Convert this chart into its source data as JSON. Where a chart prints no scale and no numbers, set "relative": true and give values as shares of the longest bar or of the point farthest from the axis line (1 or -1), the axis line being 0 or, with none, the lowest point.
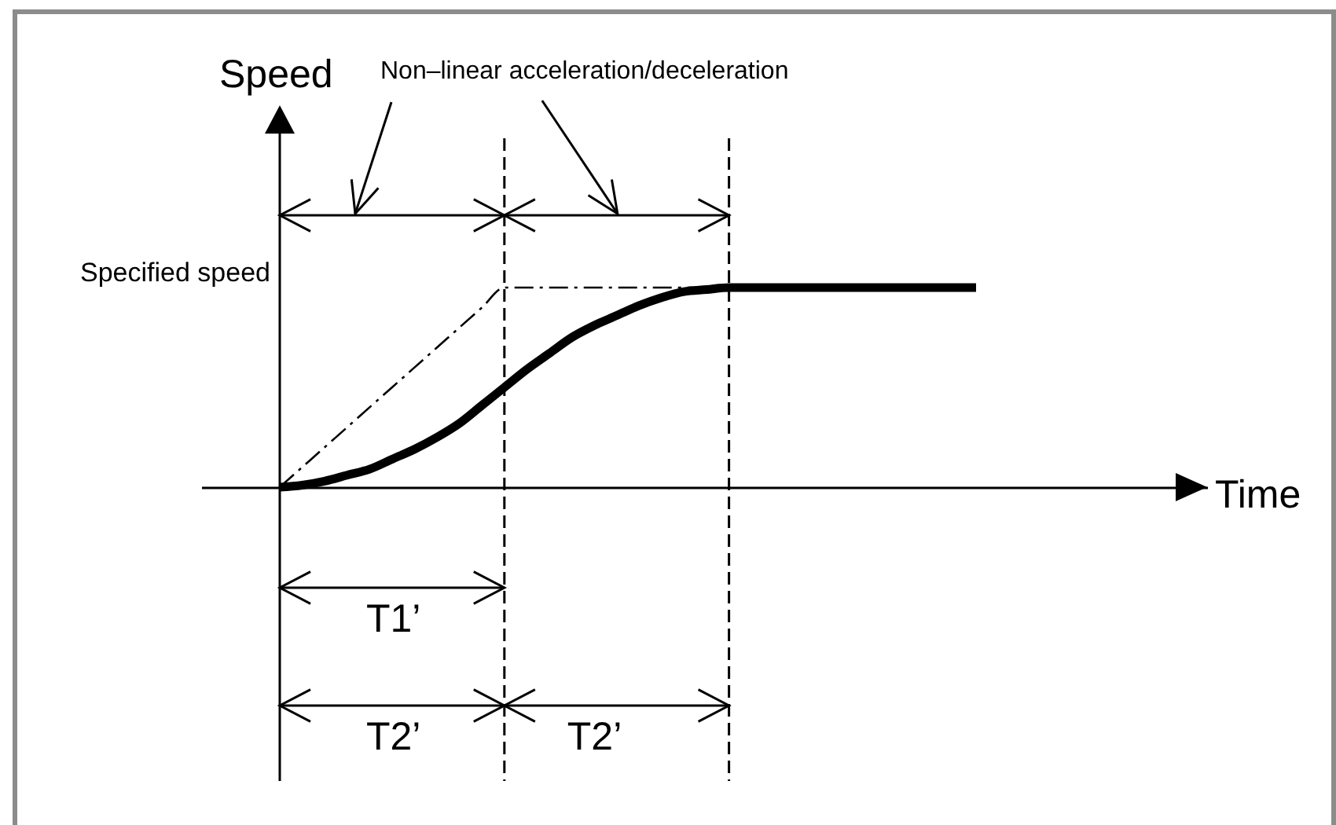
{
  "chart_data": {
    "type": "line",
    "ylabel": "Speed",
    "relative": true,
    "line_style": "solid",
    "categories": [
      null,
      null,
      null,
      null,
      null,
      null,
      null,
      null,
      null,
      null,
      null,
      null,
      null,
      null,
      null,
      null,
      null,
      null,
      null,
      null,
      null,
      null,
      null,
      null,
      null,
      null,
      null,
      null,
      null,
      null,
      null,
      null
    ],
    "series": [
      {
        "color": "#000000",
        "values": [
          0,
          0.01,
          0.03,
          0.06,
          0.09,
          0.14,
          0.19,
          0.25,
          0.32,
          0.41,
          0.5,
          0.59,
          0.67,
          0.75,
          0.81,
          0.86,
          0.91,
          0.95,
          0.98,
          0.99,
          1,
          1,
          1,
          1,
          1,
          1,
          1,
          1,
          1,
          1,
          1,
          1
        ]
      },
      {
        "color": "#000000",
        "line_style": "dashed",
        "values": [
          0,
          0.1,
          0.2,
          0.3,
          0.4,
          0.5,
          0.6,
          0.7,
          0.8,
          0.9,
          1,
          1,
          1,
          1,
          1,
          1,
          1,
          1,
          1,
          1,
          1,
          null,
          null,
          null,
          null,
          null,
          null,
          null,
          null,
          null,
          null,
          null
        ]
      }
    ],
    "annotations": [
      "Non–linear acceleration/deceleration",
      "Specified speed",
      "T1’",
      "T2’",
      "T2’",
      "Time"
    ]
  }
}
